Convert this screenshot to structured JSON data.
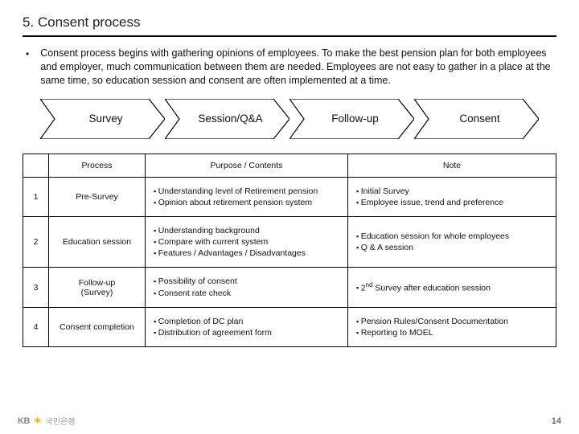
{
  "title": "5. Consent process",
  "description": "Consent process begins with gathering opinions of employees. To make the best pension plan for both employees and employer, much communication between them are needed. Employees are not easy to gather in a place at the same time, so education session and consent are often implemented at a time.",
  "flow": {
    "steps": [
      "Survey",
      "Session/Q&A",
      "Follow-up",
      "Consent"
    ],
    "stroke": "#000000",
    "fill": "#ffffff"
  },
  "table": {
    "headers": {
      "col1": "",
      "col2": "Process",
      "col3": "Purpose / Contents",
      "col4": "Note"
    },
    "rows": [
      {
        "num": "1",
        "process": "Pre-Survey",
        "purpose": [
          "Understanding level of Retirement pension",
          "Opinion about retirement pension system"
        ],
        "note": [
          "Initial Survey",
          "Employee issue, trend and preference"
        ]
      },
      {
        "num": "2",
        "process": "Education session",
        "purpose": [
          "Understanding background",
          "Compare with current system",
          "Features / Advantages / Disadvantages"
        ],
        "note": [
          "Education session for whole employees",
          "Q & A session"
        ]
      },
      {
        "num": "3",
        "process": "Follow-up\n(Survey)",
        "purpose": [
          "Possibility of consent",
          "Consent rate check"
        ],
        "note_html": "2<sup>nd</sup> Survey after education session"
      },
      {
        "num": "4",
        "process": "Consent completion",
        "purpose": [
          "Completion of DC plan",
          "Distribution of agreement form"
        ],
        "note": [
          "Pension Rules/Consent Documentation",
          "Reporting to MOEL"
        ]
      }
    ]
  },
  "footer": {
    "logo_kb": "KB",
    "logo_kr": "국민은행",
    "page": "14"
  }
}
